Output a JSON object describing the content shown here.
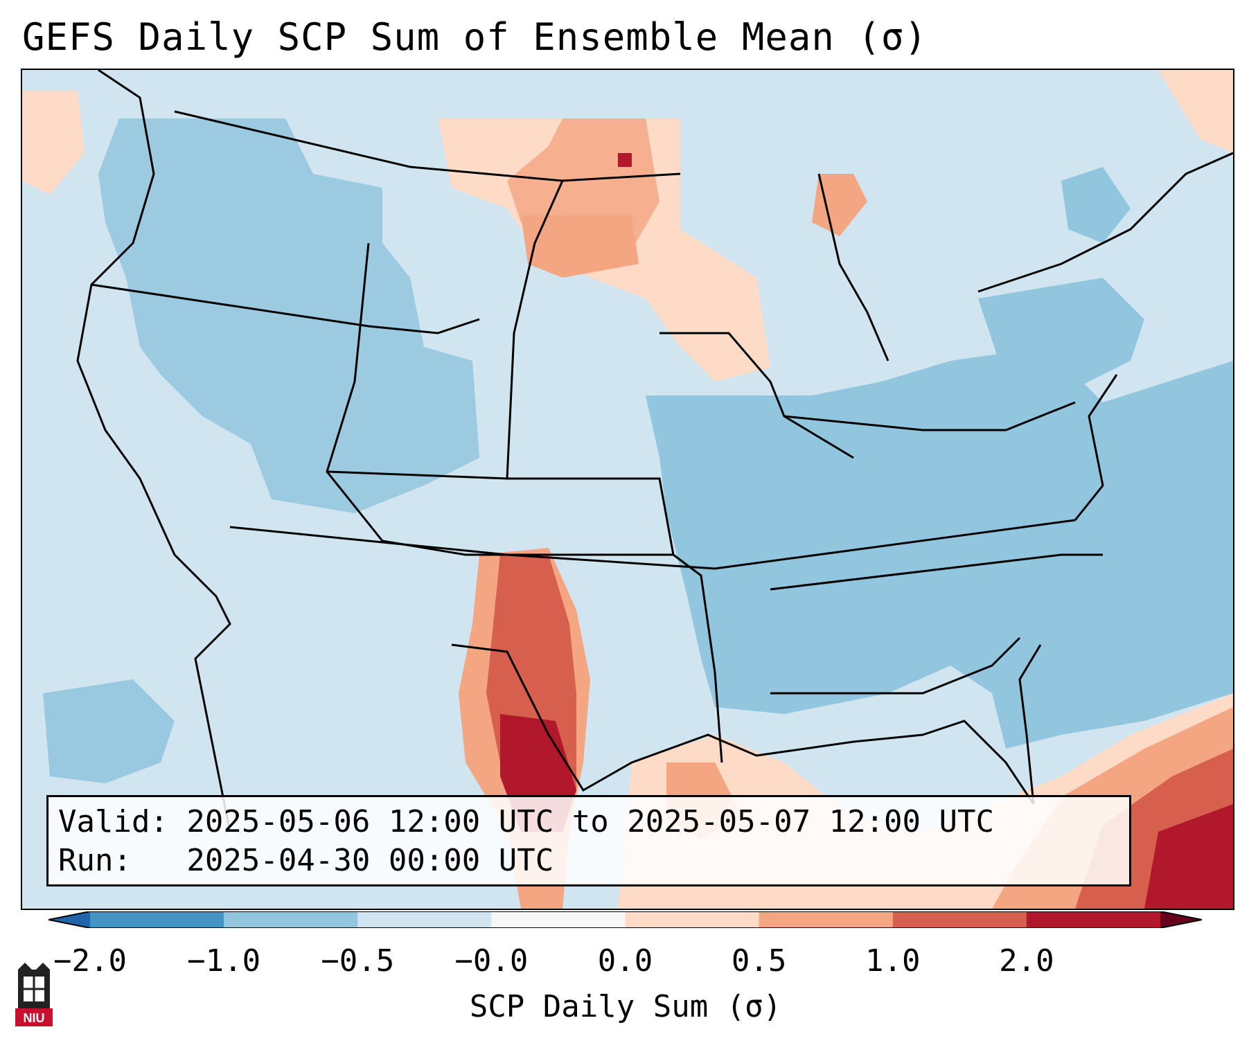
{
  "title": "GEFS Daily SCP Sum of Ensemble Mean (σ)",
  "info": {
    "valid_line": "Valid: 2025-05-06 12:00 UTC to 2025-05-07 12:00 UTC",
    "run_line": "Run:   2025-04-30 00:00 UTC"
  },
  "colorbar": {
    "label": "SCP Daily Sum (σ)",
    "ticks": [
      "−2.0",
      "−1.0",
      "−0.5",
      "−0.0",
      "0.0",
      "0.5",
      "1.0",
      "2.0"
    ],
    "colors": [
      "#4393c3",
      "#92c5de",
      "#d1e5f0",
      "#f7f7f7",
      "#fddbc7",
      "#f4a582",
      "#d6604d",
      "#b2182b"
    ],
    "extend": "both"
  },
  "logo": {
    "text": "NIU"
  },
  "colors": {
    "light_blue": "#d1e5f0",
    "mid_blue": "#92c5de",
    "dark_blue": "#4393c3",
    "light_red": "#fddbc7",
    "mid_red": "#f4a582",
    "red": "#d6604d",
    "dark_red": "#b2182b"
  }
}
